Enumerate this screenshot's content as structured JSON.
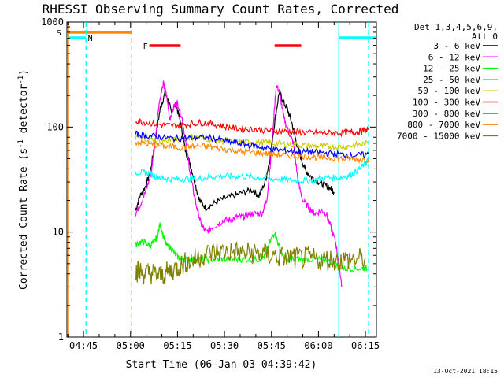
{
  "chart_data": {
    "type": "line",
    "title": "RHESSI Observing Summary Count Rates, Corrected",
    "xlabel": "Start Time (06-Jan-03 04:39:42)",
    "ylabel_main": "Corrected Count Rate (s",
    "ylabel_sup1": "-1",
    "ylabel_mid": " detector",
    "ylabel_sup2": "-1",
    "ylabel_end": ")",
    "yscale": "log",
    "ylim": [
      1,
      1000
    ],
    "xlim_minutes": [
      279.7,
      378.5
    ],
    "x_ticks": [
      {
        "t": 285,
        "label": "04:45"
      },
      {
        "t": 300,
        "label": "05:00"
      },
      {
        "t": 315,
        "label": "05:15"
      },
      {
        "t": 330,
        "label": "05:30"
      },
      {
        "t": 345,
        "label": "05:45"
      },
      {
        "t": 360,
        "label": "06:00"
      },
      {
        "t": 375,
        "label": "06:15"
      }
    ],
    "y_ticks": [
      {
        "v": 1,
        "label": "1"
      },
      {
        "v": 10,
        "label": "10"
      },
      {
        "v": 100,
        "label": "100"
      },
      {
        "v": 1000,
        "label": "1000"
      }
    ],
    "legend_header": [
      "Det 1,3,4,5,6,9,",
      "Att 0"
    ],
    "series": [
      {
        "name": "3 - 6 keV",
        "color": "#000000",
        "points": [
          [
            301.6,
            16
          ],
          [
            303,
            22
          ],
          [
            305,
            28
          ],
          [
            306.5,
            40
          ],
          [
            308,
            80
          ],
          [
            309.5,
            150
          ],
          [
            311,
            210
          ],
          [
            312,
            180
          ],
          [
            313,
            140
          ],
          [
            314.5,
            165
          ],
          [
            316,
            110
          ],
          [
            317.5,
            60
          ],
          [
            319,
            45
          ],
          [
            320.5,
            30
          ],
          [
            322,
            20
          ],
          [
            324,
            17
          ],
          [
            327,
            19
          ],
          [
            330,
            21
          ],
          [
            333,
            22
          ],
          [
            336,
            24
          ],
          [
            339,
            25
          ],
          [
            341,
            22
          ],
          [
            343,
            30
          ],
          [
            344.5,
            50
          ],
          [
            346,
            110
          ],
          [
            347.5,
            220
          ],
          [
            348.5,
            180
          ],
          [
            350,
            150
          ],
          [
            351.5,
            110
          ],
          [
            353,
            70
          ],
          [
            354.5,
            50
          ],
          [
            356,
            38
          ],
          [
            358,
            33
          ],
          [
            360,
            30
          ],
          [
            362,
            28
          ],
          [
            364,
            26
          ],
          [
            365,
            24
          ]
        ]
      },
      {
        "name": "6 - 12 keV",
        "color": "#ff00ff",
        "points": [
          [
            301.6,
            15
          ],
          [
            303,
            18
          ],
          [
            305,
            25
          ],
          [
            306.5,
            35
          ],
          [
            307.5,
            60
          ],
          [
            309,
            160
          ],
          [
            310.5,
            260
          ],
          [
            311.5,
            200
          ],
          [
            312.5,
            120
          ],
          [
            314,
            160
          ],
          [
            315,
            170
          ],
          [
            316.5,
            120
          ],
          [
            318,
            60
          ],
          [
            319.5,
            30
          ],
          [
            321,
            18
          ],
          [
            322.5,
            12
          ],
          [
            324,
            10
          ],
          [
            326,
            11
          ],
          [
            328,
            12
          ],
          [
            330,
            13
          ],
          [
            332,
            13
          ],
          [
            334,
            14
          ],
          [
            336,
            14
          ],
          [
            338,
            15
          ],
          [
            340,
            15
          ],
          [
            342,
            15
          ],
          [
            343.5,
            20
          ],
          [
            345,
            60
          ],
          [
            346.5,
            250
          ],
          [
            347.5,
            220
          ],
          [
            349,
            120
          ],
          [
            350.5,
            90
          ],
          [
            352,
            70
          ],
          [
            353.5,
            30
          ],
          [
            355,
            20
          ],
          [
            357,
            17
          ],
          [
            359,
            15
          ],
          [
            361,
            16
          ],
          [
            362.5,
            15
          ],
          [
            364,
            11
          ],
          [
            365.5,
            8
          ],
          [
            366.5,
            5
          ],
          [
            367.5,
            3
          ]
        ]
      },
      {
        "name": "12 - 25 keV",
        "color": "#00ff00",
        "points": [
          [
            301.6,
            7.5
          ],
          [
            303,
            8
          ],
          [
            304.5,
            8
          ],
          [
            306,
            7.5
          ],
          [
            307.5,
            8
          ],
          [
            308.5,
            9
          ],
          [
            309.5,
            12
          ],
          [
            310.5,
            9
          ],
          [
            311.5,
            7.5
          ],
          [
            313,
            7
          ],
          [
            314.5,
            6
          ],
          [
            316,
            5.5
          ],
          [
            318,
            5.5
          ],
          [
            320,
            5.5
          ],
          [
            323,
            5.5
          ],
          [
            326,
            5.5
          ],
          [
            329,
            5.5
          ],
          [
            332,
            5.5
          ],
          [
            335,
            5.5
          ],
          [
            338,
            5.5
          ],
          [
            341,
            5.5
          ],
          [
            343,
            6
          ],
          [
            344.5,
            8
          ],
          [
            346,
            10
          ],
          [
            347,
            8
          ],
          [
            348.5,
            6
          ],
          [
            350,
            5.5
          ],
          [
            353,
            5.5
          ],
          [
            356,
            5.5
          ],
          [
            359,
            5.5
          ],
          [
            362,
            5.5
          ],
          [
            365,
            5
          ],
          [
            368,
            4.5
          ],
          [
            371,
            4.5
          ],
          [
            374,
            4.5
          ],
          [
            375.5,
            4.5
          ]
        ]
      },
      {
        "name": "25 - 50 keV",
        "color": "#00ffff",
        "points": [
          [
            301.6,
            37
          ],
          [
            304,
            37
          ],
          [
            306,
            36
          ],
          [
            308,
            34
          ],
          [
            310,
            33
          ],
          [
            312,
            32
          ],
          [
            315,
            32
          ],
          [
            318,
            32
          ],
          [
            321,
            32
          ],
          [
            324,
            33
          ],
          [
            327,
            34
          ],
          [
            330,
            34
          ],
          [
            333,
            34
          ],
          [
            336,
            34
          ],
          [
            339,
            33
          ],
          [
            342,
            33
          ],
          [
            345,
            32
          ],
          [
            348,
            32
          ],
          [
            351,
            31
          ],
          [
            354,
            31
          ],
          [
            357,
            31
          ],
          [
            360,
            32
          ],
          [
            363,
            33
          ],
          [
            366,
            33
          ],
          [
            369,
            34
          ],
          [
            371,
            36
          ],
          [
            373,
            40
          ],
          [
            375,
            45
          ],
          [
            376,
            50
          ]
        ]
      },
      {
        "name": "50 - 100 keV",
        "color": "#cccc00",
        "points": [
          [
            301.6,
            80
          ],
          [
            304,
            78
          ],
          [
            307,
            75
          ],
          [
            310,
            74
          ],
          [
            313,
            75
          ],
          [
            316,
            78
          ],
          [
            319,
            80
          ],
          [
            322,
            80
          ],
          [
            325,
            77
          ],
          [
            328,
            74
          ],
          [
            331,
            73
          ],
          [
            334,
            72
          ],
          [
            337,
            72
          ],
          [
            340,
            72
          ],
          [
            343,
            71
          ],
          [
            346,
            70
          ],
          [
            349,
            69
          ],
          [
            352,
            68
          ],
          [
            355,
            67
          ],
          [
            358,
            66
          ],
          [
            361,
            66
          ],
          [
            364,
            65
          ],
          [
            367,
            65
          ],
          [
            370,
            66
          ],
          [
            373,
            68
          ],
          [
            376,
            70
          ]
        ]
      },
      {
        "name": "100 - 300 keV",
        "color": "#ff0000",
        "points": [
          [
            301.6,
            115
          ],
          [
            304,
            112
          ],
          [
            307,
            108
          ],
          [
            310,
            105
          ],
          [
            313,
            103
          ],
          [
            316,
            104
          ],
          [
            319,
            107
          ],
          [
            322,
            110
          ],
          [
            325,
            108
          ],
          [
            328,
            104
          ],
          [
            331,
            100
          ],
          [
            334,
            97
          ],
          [
            337,
            96
          ],
          [
            340,
            95
          ],
          [
            343,
            93
          ],
          [
            346,
            92
          ],
          [
            349,
            91
          ],
          [
            352,
            90
          ],
          [
            355,
            89
          ],
          [
            358,
            88
          ],
          [
            361,
            88
          ],
          [
            364,
            88
          ],
          [
            367,
            88
          ],
          [
            370,
            89
          ],
          [
            372,
            90
          ],
          [
            374,
            92
          ],
          [
            376,
            95
          ]
        ]
      },
      {
        "name": "300 - 800 keV",
        "color": "#0000ff",
        "points": [
          [
            301.6,
            86
          ],
          [
            304,
            84
          ],
          [
            307,
            82
          ],
          [
            310,
            80
          ],
          [
            313,
            78
          ],
          [
            316,
            78
          ],
          [
            319,
            79
          ],
          [
            322,
            80
          ],
          [
            325,
            79
          ],
          [
            328,
            76
          ],
          [
            331,
            73
          ],
          [
            334,
            70
          ],
          [
            337,
            68
          ],
          [
            340,
            66
          ],
          [
            343,
            63
          ],
          [
            346,
            61
          ],
          [
            349,
            60
          ],
          [
            352,
            59
          ],
          [
            355,
            58
          ],
          [
            358,
            58
          ],
          [
            361,
            57
          ],
          [
            364,
            56
          ],
          [
            367,
            55
          ],
          [
            370,
            54
          ],
          [
            373,
            54
          ],
          [
            376,
            55
          ]
        ]
      },
      {
        "name": "800 - 7000 keV",
        "color": "#ff8800",
        "points": [
          [
            301.6,
            72
          ],
          [
            304,
            70
          ],
          [
            307,
            68
          ],
          [
            310,
            66
          ],
          [
            313,
            65
          ],
          [
            316,
            64
          ],
          [
            319,
            65
          ],
          [
            322,
            66
          ],
          [
            325,
            65
          ],
          [
            328,
            63
          ],
          [
            331,
            61
          ],
          [
            334,
            59
          ],
          [
            337,
            58
          ],
          [
            340,
            57
          ],
          [
            343,
            56
          ],
          [
            346,
            55
          ],
          [
            349,
            54
          ],
          [
            352,
            53
          ],
          [
            355,
            53
          ],
          [
            358,
            52
          ],
          [
            361,
            51
          ],
          [
            364,
            51
          ],
          [
            367,
            50
          ],
          [
            370,
            50
          ],
          [
            373,
            49
          ],
          [
            376,
            49
          ]
        ]
      },
      {
        "name": "7000 - 15000 keV",
        "color": "#808000",
        "points": [
          [
            301.6,
            4.3
          ],
          [
            303,
            4.2
          ],
          [
            305,
            4.0
          ],
          [
            307,
            4.1
          ],
          [
            309,
            3.8
          ],
          [
            311,
            4.0
          ],
          [
            313,
            4.3
          ],
          [
            315,
            4.6
          ],
          [
            317,
            5.0
          ],
          [
            319,
            5.3
          ],
          [
            321,
            5.6
          ],
          [
            324,
            6.2
          ],
          [
            327,
            6.4
          ],
          [
            330,
            6.5
          ],
          [
            333,
            6.5
          ],
          [
            336,
            6.3
          ],
          [
            339,
            6.3
          ],
          [
            342,
            6.3
          ],
          [
            345,
            6.0
          ],
          [
            348,
            5.8
          ],
          [
            351,
            5.7
          ],
          [
            354,
            5.6
          ],
          [
            357,
            5.6
          ],
          [
            360,
            5.5
          ],
          [
            363,
            5.5
          ],
          [
            366,
            5.4
          ],
          [
            369,
            5.5
          ],
          [
            372,
            5.5
          ],
          [
            375,
            5.6
          ]
        ]
      }
    ],
    "flags": [
      {
        "code": "S",
        "color": "#ff8800",
        "t0": 279.7,
        "t1": 300.4,
        "label_t": 279.9
      },
      {
        "code": "N",
        "color": "#00ffff",
        "t0": 279.7,
        "t1": 285.8,
        "label_t": 286.4
      },
      {
        "code": "N",
        "color": "#00ffff",
        "t0": 366.5,
        "t1": 378.5,
        "label_t": null
      },
      {
        "code": "F",
        "color": "#ff0000",
        "t0": 306.0,
        "t1": 316.0,
        "label_t": 304.0
      },
      {
        "code": "F",
        "color": "#ff0000",
        "t0": 346.0,
        "t1": 354.5,
        "label_t": null
      }
    ],
    "vlines": [
      {
        "t": 280.2,
        "color": "#ff8800",
        "style": "solid"
      },
      {
        "t": 285.8,
        "color": "#00ffff",
        "style": "dash"
      },
      {
        "t": 300.4,
        "color": "#ff8800",
        "style": "dash"
      },
      {
        "t": 366.5,
        "color": "#00ffff",
        "style": "solid"
      },
      {
        "t": 376.0,
        "color": "#00ffff",
        "style": "dash"
      }
    ],
    "footer_date": "13-Oct-2021 18:15"
  }
}
